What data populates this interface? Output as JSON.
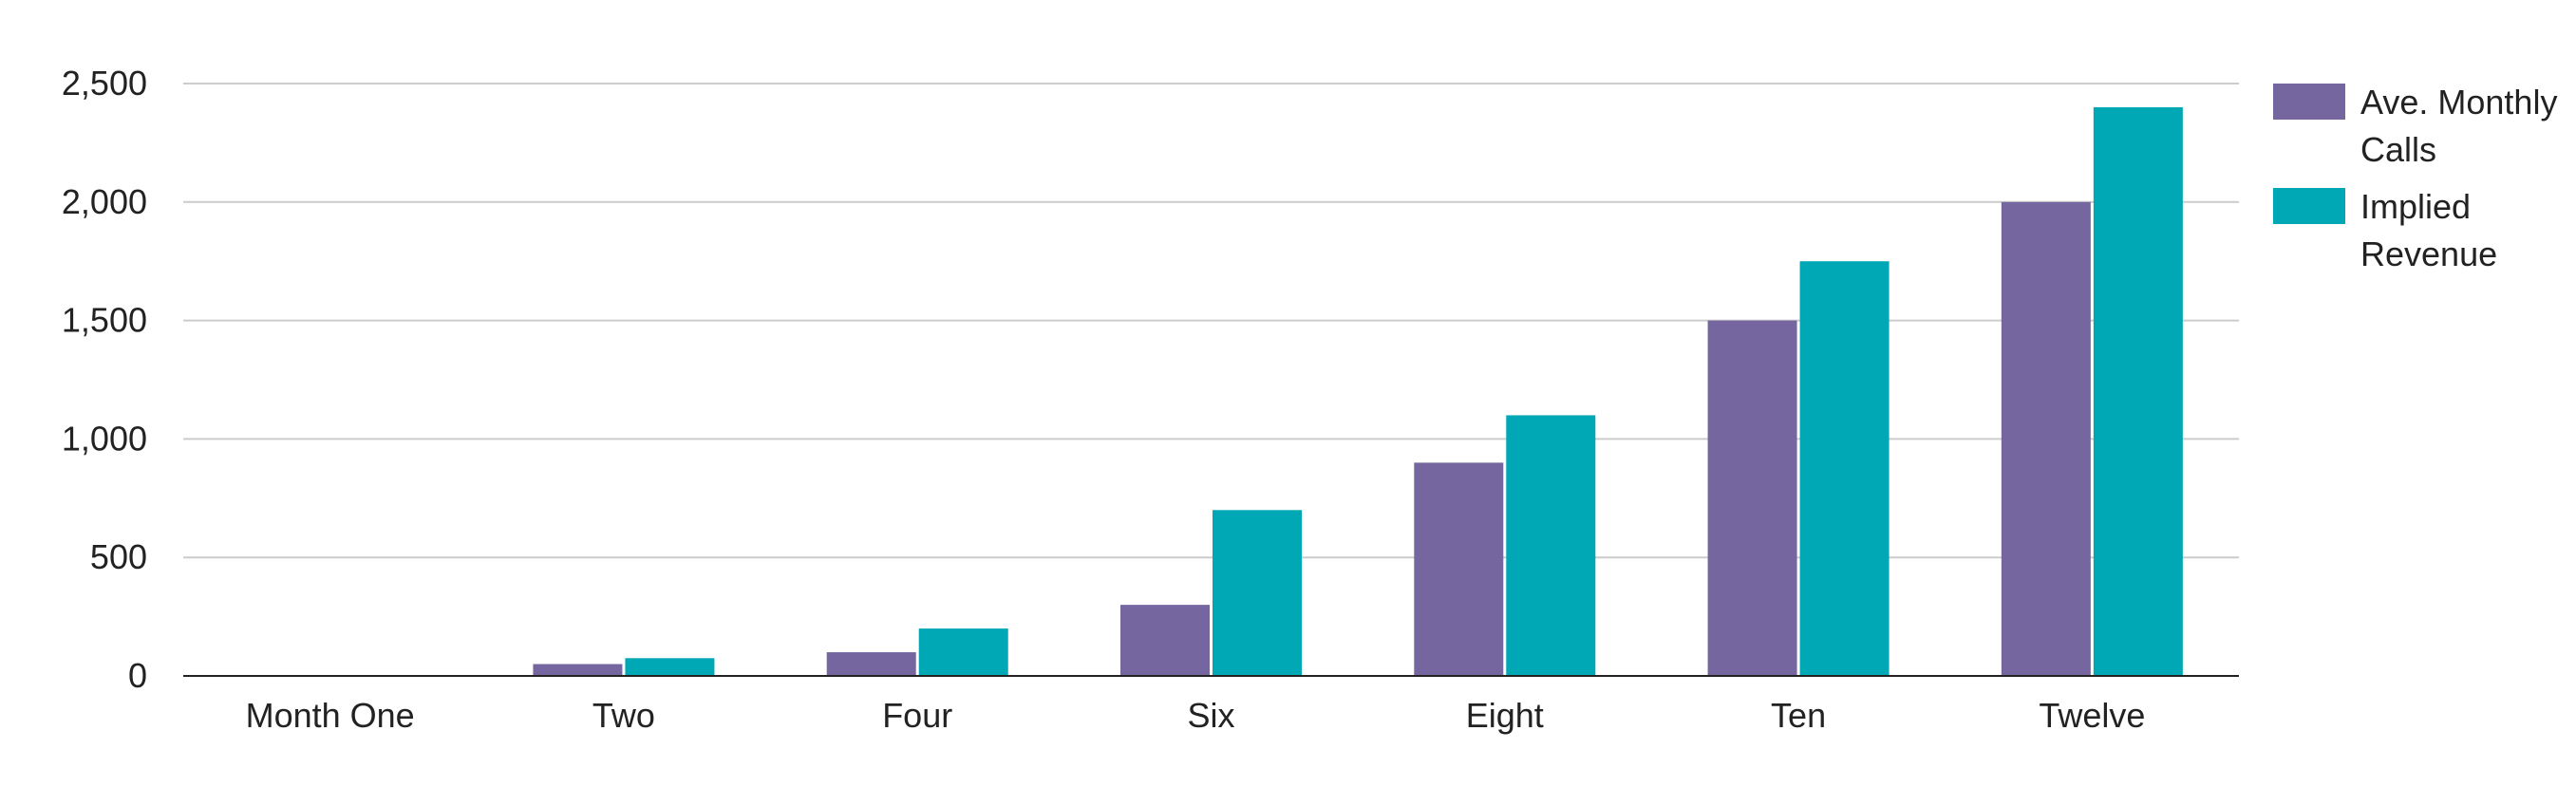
{
  "chart_data": {
    "type": "bar",
    "title": "",
    "xlabel": "",
    "ylabel": "",
    "categories": [
      "Month One",
      "Two",
      "Four",
      "Six",
      "Eight",
      "Ten",
      "Twelve"
    ],
    "series": [
      {
        "name": "Ave. Monthly Calls",
        "color": "#7566a0",
        "values": [
          0,
          50,
          100,
          300,
          900,
          1500,
          2000
        ]
      },
      {
        "name": "Implied Revenue",
        "color": "#00a8b5",
        "values": [
          0,
          75,
          200,
          700,
          1100,
          1750,
          2400
        ]
      }
    ],
    "ylim": [
      0,
      2500
    ],
    "yticks": [
      0,
      500,
      1000,
      1500,
      2000,
      2500
    ],
    "ytick_labels": [
      "0",
      "500",
      "1,000",
      "1,500",
      "2,000",
      "2,500"
    ],
    "grid": true,
    "gridline_color": "#cccccc",
    "axis_color": "#222222",
    "legend_position": "right-top",
    "legend_labels": [
      [
        "Ave. Monthly",
        "Calls"
      ],
      [
        "Implied",
        "Revenue"
      ]
    ]
  }
}
